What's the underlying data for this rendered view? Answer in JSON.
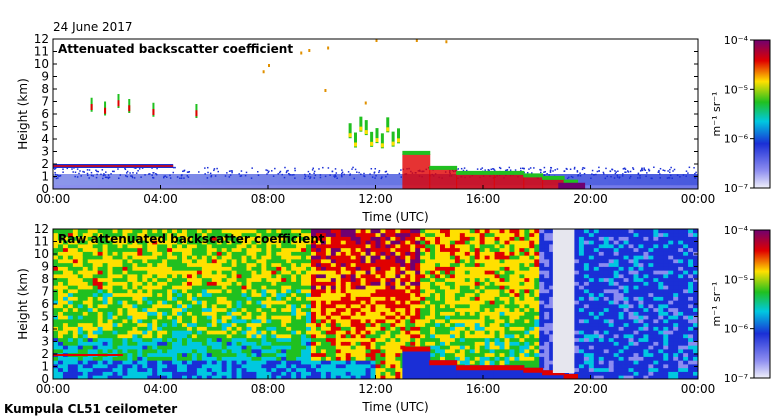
{
  "header": {
    "date": "24 June 2017"
  },
  "footer": {
    "site": "Kumpula CL51 ceilometer"
  },
  "colors": {
    "low": "#f0f0fa",
    "blue": "#1a2fd6",
    "cyan": "#00e0e0",
    "green": "#20c020",
    "yellow": "#ffe000",
    "red": "#e00000",
    "purple": "#700070"
  },
  "chart_data": [
    {
      "type": "heatmap",
      "title": "Attenuated backscatter coefficient",
      "xlabel": "Time (UTC)",
      "ylabel": "Height (km)",
      "x_ticks": [
        "00:00",
        "04:00",
        "08:00",
        "12:00",
        "16:00",
        "20:00",
        "00:00"
      ],
      "x_range_hours": [
        0,
        24
      ],
      "y_ticks": [
        "0",
        "1",
        "2",
        "3",
        "4",
        "5",
        "6",
        "7",
        "8",
        "9",
        "10",
        "11",
        "12"
      ],
      "ylim": [
        0,
        12
      ],
      "colorbar": {
        "label": "m⁻¹ sr⁻¹",
        "ticks": [
          "10⁻⁷",
          "10⁻⁶",
          "10⁻⁵",
          "10⁻⁴"
        ],
        "range_exp": [
          -7,
          -4
        ]
      }
    },
    {
      "type": "heatmap",
      "title": "Raw attenuated backscatter coefficient",
      "xlabel": "Time (UTC)",
      "ylabel": "Height (km)",
      "x_ticks": [
        "00:00",
        "04:00",
        "08:00",
        "12:00",
        "16:00",
        "20:00",
        "00:00"
      ],
      "x_range_hours": [
        0,
        24
      ],
      "y_ticks": [
        "0",
        "1",
        "2",
        "3",
        "4",
        "5",
        "6",
        "7",
        "8",
        "9",
        "10",
        "11",
        "12"
      ],
      "ylim": [
        0,
        12
      ],
      "colorbar": {
        "label": "m⁻¹ sr⁻¹",
        "ticks": [
          "10⁻⁷",
          "10⁻⁶",
          "10⁻⁵",
          "10⁻⁴"
        ],
        "range_exp": [
          -7,
          -4
        ]
      }
    }
  ]
}
